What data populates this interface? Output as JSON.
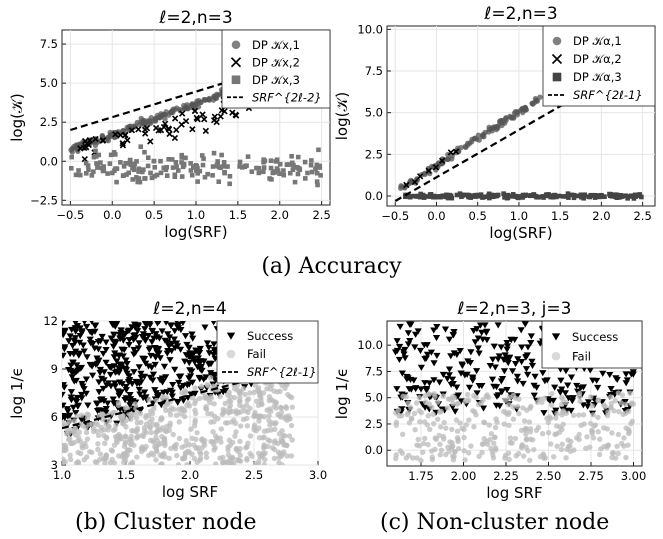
{
  "captions": {
    "a": "(a) Accuracy",
    "b": "(b) Cluster node",
    "c": "(c) Non-cluster node"
  },
  "chart_data": [
    {
      "id": "acc-x",
      "type": "scatter",
      "title": "ℓ=2,n=3",
      "xlabel": "log(SRF)",
      "ylabel": "log(𝒦)",
      "xlim": [
        -0.6,
        2.6
      ],
      "ylim": [
        -2.8,
        8.4
      ],
      "xticks": [
        -0.5,
        0.0,
        0.5,
        1.0,
        1.5,
        2.0,
        2.5
      ],
      "yticks": [
        -2.5,
        0.0,
        2.5,
        5.0,
        7.5
      ],
      "grid": true,
      "legend": "top-right",
      "series": [
        {
          "name": "DP 𝒦x,1",
          "marker": "circle",
          "color": "#555555",
          "model": {
            "kind": "linear",
            "slope": 2.0,
            "intercept": 1.7,
            "x_range": [
              -0.5,
              2.5
            ],
            "noise": 0.25,
            "n": 260
          }
        },
        {
          "name": "DP 𝒦x,2",
          "marker": "cross",
          "color": "#000000",
          "model": {
            "kind": "linear",
            "slope": 1.4,
            "intercept": 1.2,
            "x_range": [
              -0.4,
              1.8
            ],
            "noise": 0.8,
            "n": 60
          }
        },
        {
          "name": "DP 𝒦x,3",
          "marker": "square",
          "color": "#777777",
          "model": {
            "kind": "cloud",
            "center": -0.4,
            "noise": 0.9,
            "x_range": [
              -0.5,
              2.5
            ],
            "n": 190
          }
        },
        {
          "name": "SRF^{2ℓ-2}",
          "marker": "dash",
          "line": {
            "x": [
              -0.5,
              2.55
            ],
            "y": [
              2.0,
              7.0
            ]
          }
        }
      ]
    },
    {
      "id": "acc-alpha",
      "type": "scatter",
      "title": "ℓ=2,n=3",
      "xlabel": "log(SRF)",
      "ylabel": "log(𝒦)",
      "xlim": [
        -0.6,
        2.65
      ],
      "ylim": [
        -0.6,
        10.2
      ],
      "xticks": [
        -0.5,
        0.0,
        0.5,
        1.0,
        1.5,
        2.0,
        2.5
      ],
      "yticks": [
        0.0,
        2.5,
        5.0,
        7.5,
        10.0
      ],
      "grid": true,
      "legend": "top-right",
      "series": [
        {
          "name": "DP 𝒦α,1",
          "marker": "circle",
          "color": "#555555",
          "model": {
            "kind": "linear",
            "slope": 3.2,
            "intercept": 1.85,
            "x_range": [
              -0.45,
              2.55
            ],
            "noise": 0.2,
            "n": 240
          }
        },
        {
          "name": "DP 𝒦α,2",
          "marker": "cross",
          "color": "#000000",
          "model": {
            "kind": "linear",
            "slope": 3.2,
            "intercept": 1.85,
            "x_range": [
              -0.4,
              0.3
            ],
            "noise": 0.2,
            "n": 8
          }
        },
        {
          "name": "DP 𝒦α,3",
          "marker": "square",
          "color": "#444444",
          "model": {
            "kind": "cloud",
            "center": 0.0,
            "noise": 0.12,
            "x_range": [
              -0.4,
              2.5
            ],
            "n": 200
          }
        },
        {
          "name": "SRF^{2ℓ-1}",
          "marker": "dash",
          "line": {
            "x": [
              -0.5,
              1.75
            ],
            "y": [
              -0.3,
              6.1
            ]
          }
        }
      ]
    },
    {
      "id": "cluster",
      "type": "scatter",
      "title": "ℓ=2,n=4",
      "xlabel": "log SRF",
      "ylabel": "log 1/ϵ",
      "xlim": [
        1.0,
        3.0
      ],
      "ylim": [
        3.0,
        12.0
      ],
      "xticks": [
        1.0,
        1.5,
        2.0,
        2.5,
        3.0
      ],
      "yticks": [
        3,
        6,
        9,
        12
      ],
      "grid": true,
      "legend": "top-right",
      "series": [
        {
          "name": "Success",
          "marker": "triangle-down",
          "color": "#000000",
          "model": {
            "kind": "region-above",
            "line": [
              1.0,
              5.3,
              2.6,
              8.6
            ],
            "x_range": [
              1.0,
              2.6
            ],
            "y_range": [
              3.2,
              12.0
            ],
            "n": 560
          }
        },
        {
          "name": "Fail",
          "marker": "circle",
          "color": "#bbbbbb",
          "model": {
            "kind": "region-below",
            "line": [
              1.0,
              5.3,
              2.6,
              8.6
            ],
            "x_range": [
              1.0,
              2.8
            ],
            "y_range": [
              3.0,
              8.5
            ],
            "n": 620
          }
        },
        {
          "name": "SRF^{2ℓ-1}",
          "marker": "dash",
          "line": {
            "x": [
              1.0,
              2.6
            ],
            "y": [
              5.3,
              8.6
            ]
          }
        }
      ]
    },
    {
      "id": "noncluster",
      "type": "scatter",
      "title": "ℓ=2,n=3, j=3",
      "xlabel": "log SRF",
      "ylabel": "log 1/ϵ",
      "xlim": [
        1.55,
        3.05
      ],
      "ylim": [
        -1.5,
        12.3
      ],
      "xticks": [
        1.75,
        2.0,
        2.25,
        2.5,
        2.75,
        3.0
      ],
      "yticks": [
        0.0,
        2.5,
        5.0,
        7.5,
        10.0
      ],
      "grid": true,
      "legend": "top-right",
      "series": [
        {
          "name": "Success",
          "marker": "triangle-down",
          "color": "#000000",
          "model": {
            "kind": "band",
            "x_range": [
              1.6,
              3.0
            ],
            "y_range": [
              3.5,
              12.0
            ],
            "n": 330
          }
        },
        {
          "name": "Fail",
          "marker": "circle",
          "color": "#bbbbbb",
          "model": {
            "kind": "band",
            "x_range": [
              1.6,
              3.0
            ],
            "y_range": [
              -1.0,
              5.5
            ],
            "n": 330
          }
        }
      ]
    }
  ]
}
